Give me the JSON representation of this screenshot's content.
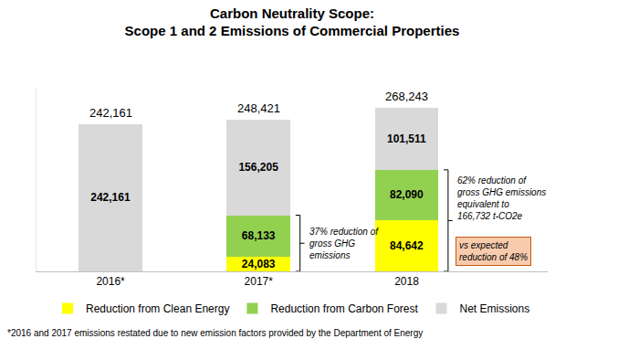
{
  "chart_data": {
    "type": "bar",
    "title": "Carbon Neutrality Scope:\nScope 1 and 2 Emissions of Commercial Properties",
    "categories": [
      "2016*",
      "2017*",
      "2018"
    ],
    "series": [
      {
        "name": "Reduction from Clean Energy",
        "color": "#FFFF00",
        "values": [
          null,
          24083,
          84642
        ],
        "value_labels": [
          null,
          "24,083",
          "84,642"
        ]
      },
      {
        "name": "Reduction from Carbon Forest",
        "color": "#92D050",
        "values": [
          null,
          68133,
          82090
        ],
        "value_labels": [
          null,
          "68,133",
          "82,090"
        ]
      },
      {
        "name": "Net Emissions",
        "color": "#D9D9D9",
        "values": [
          242161,
          156205,
          101511
        ],
        "value_labels": [
          "242,161",
          "156,205",
          "101,511"
        ]
      }
    ],
    "totals": [
      242161,
      248421,
      268243
    ],
    "total_labels": [
      "242,161",
      "248,421",
      "268,243"
    ],
    "ylim": [
      0,
      300000
    ],
    "stacked": true,
    "data_labels": true,
    "tick_labels": "x",
    "grid": false,
    "legend": "bottom",
    "annotations": [
      {
        "category": "2017*",
        "text": "37% reduction of\ngross GHG\nemissions"
      },
      {
        "category": "2018",
        "text": "62% reduction of\ngross GHG emissions\nequivalent to\n166,732 t-CO2e"
      },
      {
        "category": "2018",
        "text": "vs expected\nreduction of 48%",
        "color": "#F8CBAD"
      }
    ],
    "footnote": "*2016 and 2017 emissions restated due to new emission factors provided by the Department of Energy"
  }
}
